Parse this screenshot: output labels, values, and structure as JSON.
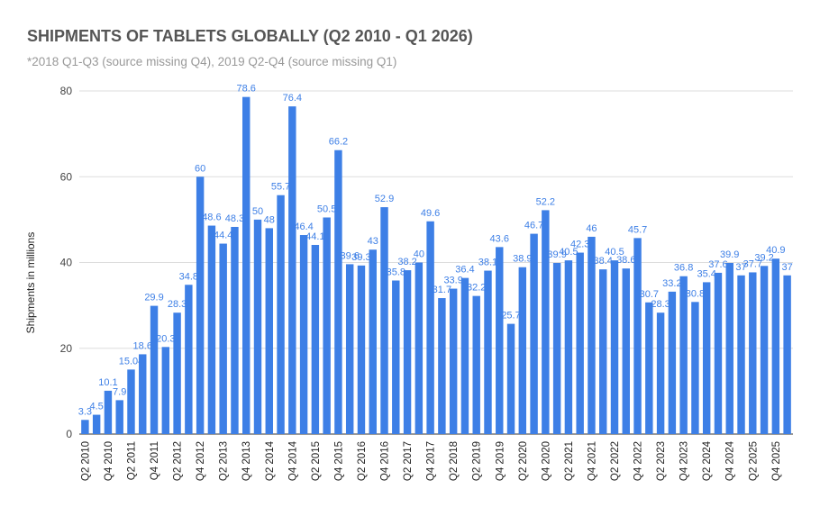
{
  "chart_data": {
    "type": "bar",
    "title": "SHIPMENTS OF TABLETS GLOBALLY (Q2 2010 - Q1 2026)",
    "subtitle": "*2018 Q1-Q3 (source missing Q4), 2019 Q2-Q4 (source missing Q1)",
    "y_label": "Shipments in millions",
    "categories": [
      "Q2 2010",
      null,
      "Q4 2010",
      null,
      "Q2 2011",
      null,
      "Q4 2011",
      null,
      "Q2 2012",
      null,
      "Q4 2012",
      null,
      "Q2 2013",
      null,
      "Q4 2013",
      null,
      "Q2 2014",
      null,
      "Q4 2014",
      null,
      "Q2 2015",
      null,
      "Q4 2015",
      null,
      "Q2 2016",
      null,
      "Q4 2016",
      null,
      "Q2 2017",
      null,
      "Q4 2017",
      null,
      "Q2 2018",
      null,
      "Q2 2019",
      null,
      "Q4 2019",
      null,
      "Q2 2020",
      null,
      "Q4 2020",
      null,
      "Q2 2021",
      null,
      "Q4 2021",
      null,
      "Q2 2022",
      null,
      "Q4 2022",
      null,
      "Q2 2023",
      null,
      "Q4 2023",
      null,
      "Q2 2024",
      null,
      "Q4 2024",
      null,
      "Q2 2025",
      null,
      "Q4 2025",
      null
    ],
    "values": [
      3.3,
      4.5,
      10.1,
      7.9,
      15.04,
      18.6,
      29.9,
      20.3,
      28.3,
      34.8,
      60,
      48.6,
      44.4,
      48.3,
      78.6,
      50,
      48,
      55.7,
      76.4,
      46.4,
      44.1,
      50.5,
      66.2,
      39.6,
      39.3,
      43,
      52.9,
      35.8,
      38.2,
      40,
      49.6,
      31.7,
      33.9,
      36.4,
      32.2,
      38.1,
      43.6,
      25.7,
      38.9,
      46.7,
      52.2,
      39.9,
      40.5,
      42.3,
      46,
      38.4,
      40.5,
      38.6,
      45.7,
      30.7,
      28.3,
      33.2,
      36.8,
      30.8,
      35.4,
      37.6,
      39.9,
      37,
      37.7,
      39.2,
      40.9,
      37
    ],
    "color": "#3d7fe6",
    "ylim": [
      0,
      80
    ],
    "yticks": [
      0,
      20,
      40,
      60,
      80
    ],
    "grid": true
  }
}
